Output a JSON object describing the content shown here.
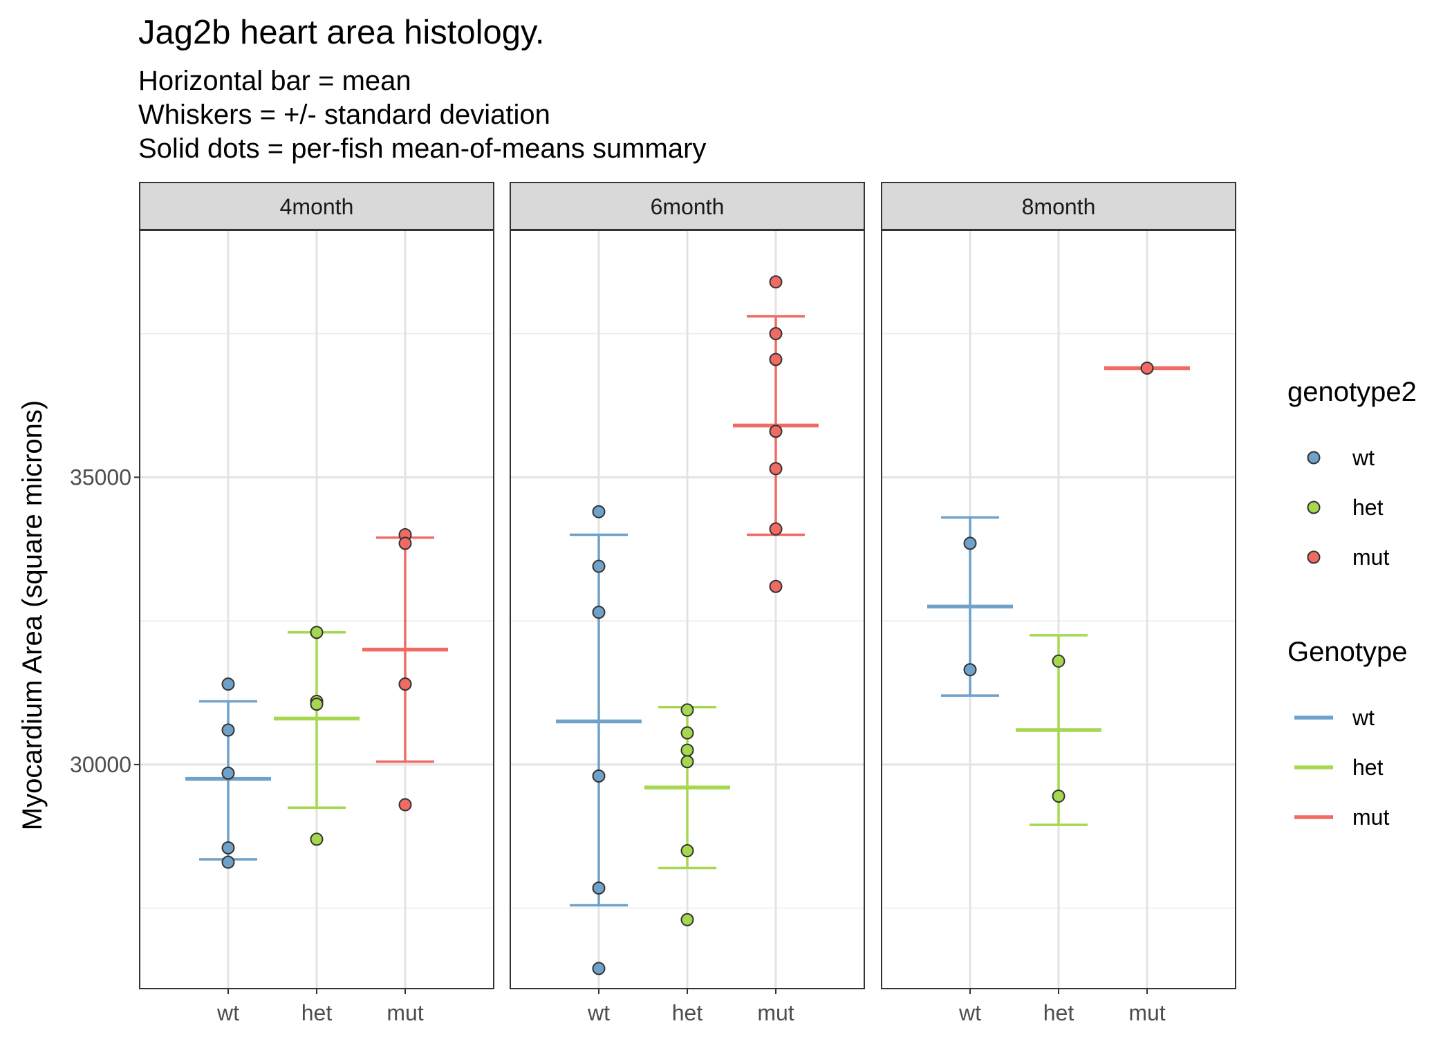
{
  "chart_data": {
    "type": "scatter",
    "title": "Jag2b heart area histology.",
    "subtitle": [
      "Horizontal bar = mean",
      "Whiskers = +/- standard deviation",
      "Solid dots = per-fish mean-of-means summary"
    ],
    "ylabel": "Myocardium Area (square microns)",
    "xlabel": "",
    "ylim": [
      26100,
      39300
    ],
    "y_ticks": [
      30000,
      35000
    ],
    "y_tick_labels": [
      "30000",
      "35000"
    ],
    "grid": true,
    "categories": [
      "wt",
      "het",
      "mut"
    ],
    "colors": {
      "wt": "#6fa1c9",
      "het": "#a5d84f",
      "mut": "#f06b63"
    },
    "panels": [
      {
        "label": "4month",
        "groups": [
          {
            "genotype": "wt",
            "mean": 29750,
            "sd_low": 28350,
            "sd_high": 31100,
            "points": [
              31400,
              30600,
              29850,
              28550,
              28300
            ]
          },
          {
            "genotype": "het",
            "mean": 30800,
            "sd_low": 29250,
            "sd_high": 32300,
            "points": [
              32300,
              31100,
              31050,
              28700
            ]
          },
          {
            "genotype": "mut",
            "mean": 32000,
            "sd_low": 30050,
            "sd_high": 33950,
            "points": [
              34000,
              33850,
              31400,
              31400,
              29300
            ]
          }
        ]
      },
      {
        "label": "6month",
        "groups": [
          {
            "genotype": "wt",
            "mean": 30750,
            "sd_low": 27550,
            "sd_high": 34000,
            "points": [
              34400,
              33450,
              32650,
              29800,
              27850,
              26450
            ]
          },
          {
            "genotype": "het",
            "mean": 29600,
            "sd_low": 28200,
            "sd_high": 31000,
            "points": [
              30950,
              30550,
              30250,
              30050,
              28500,
              27300
            ]
          },
          {
            "genotype": "mut",
            "mean": 35900,
            "sd_low": 34000,
            "sd_high": 37800,
            "points": [
              38400,
              37500,
              37050,
              35800,
              35150,
              34100,
              33100
            ]
          }
        ]
      },
      {
        "label": "8month",
        "groups": [
          {
            "genotype": "wt",
            "mean": 32750,
            "sd_low": 31200,
            "sd_high": 34300,
            "points": [
              33850,
              31650
            ]
          },
          {
            "genotype": "het",
            "mean": 30600,
            "sd_low": 28950,
            "sd_high": 32250,
            "points": [
              31800,
              29450
            ]
          },
          {
            "genotype": "mut",
            "mean": 36900,
            "sd_low": 36900,
            "sd_high": 36900,
            "points": [
              36900
            ]
          }
        ]
      }
    ],
    "legends": [
      {
        "title": "genotype2",
        "kind": "point",
        "entries": [
          "wt",
          "het",
          "mut"
        ]
      },
      {
        "title": "Genotype",
        "kind": "line",
        "entries": [
          "wt",
          "het",
          "mut"
        ]
      }
    ],
    "legend_position": "right"
  }
}
